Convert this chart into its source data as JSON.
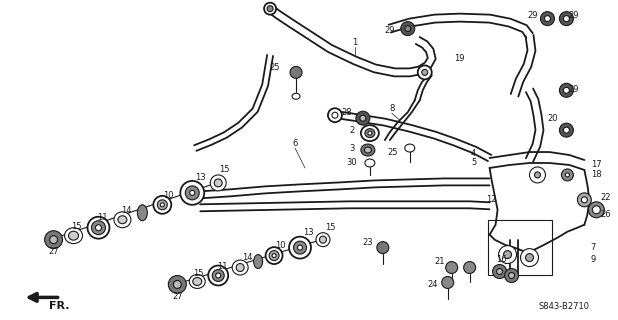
{
  "bg_color": "#ffffff",
  "fig_width": 6.18,
  "fig_height": 3.2,
  "dpi": 100,
  "part_number": "S843-B2710",
  "line_color": "#1a1a1a",
  "label_fontsize": 6.0
}
